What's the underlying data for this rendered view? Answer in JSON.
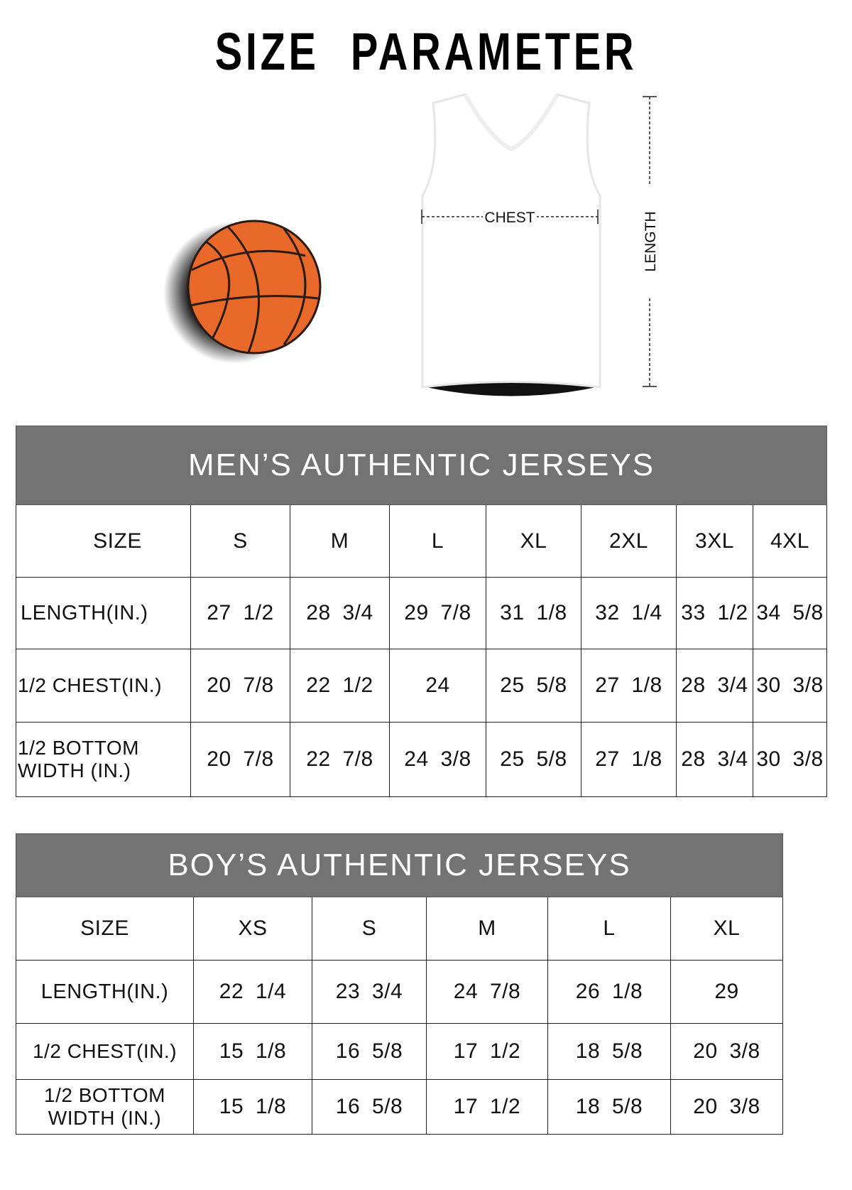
{
  "title": "SIZE PARAMETER",
  "diagram": {
    "chest_label": "CHEST",
    "length_label": "LENGTH"
  },
  "colors": {
    "header_bg": "#737373",
    "ball": "#E8692A"
  },
  "men": {
    "title": "MEN’S AUTHENTIC JERSEYS",
    "size_label": "SIZE",
    "sizes": [
      "S",
      "M",
      "L",
      "XL",
      "2XL",
      "3XL",
      "4XL"
    ],
    "rows": [
      {
        "label": "LENGTH(IN.)",
        "values": [
          "27 1/2",
          "28 3/4",
          "29 7/8",
          "31 1/8",
          "32 1/4",
          "33 1/2",
          "34 5/8"
        ]
      },
      {
        "label": "1/2 CHEST(IN.)",
        "values": [
          "20 7/8",
          "22 1/2",
          "24",
          "25 5/8",
          "27 1/8",
          "28 3/4",
          "30 3/8"
        ]
      },
      {
        "label": "1/2 BOTTOM WIDTH (IN.)",
        "values": [
          "20 7/8",
          "22 7/8",
          "24 3/8",
          "25 5/8",
          "27 1/8",
          "28 3/4",
          "30 3/8"
        ]
      }
    ]
  },
  "boy": {
    "title": "BOY’S AUTHENTIC JERSEYS",
    "size_label": "SIZE",
    "sizes": [
      "XS",
      "S",
      "M",
      "L",
      "XL"
    ],
    "rows": [
      {
        "label": "LENGTH(IN.)",
        "values": [
          "22 1/4",
          "23 3/4",
          "24 7/8",
          "26 1/8",
          "29"
        ]
      },
      {
        "label": "1/2 CHEST(IN.)",
        "values": [
          "15 1/8",
          "16 5/8",
          "17 1/2",
          "18 5/8",
          "20 3/8"
        ]
      },
      {
        "label": "1/2 BOTTOM WIDTH (IN.)",
        "values": [
          "15 1/8",
          "16 5/8",
          "17 1/2",
          "18 5/8",
          "20 3/8"
        ]
      }
    ]
  }
}
